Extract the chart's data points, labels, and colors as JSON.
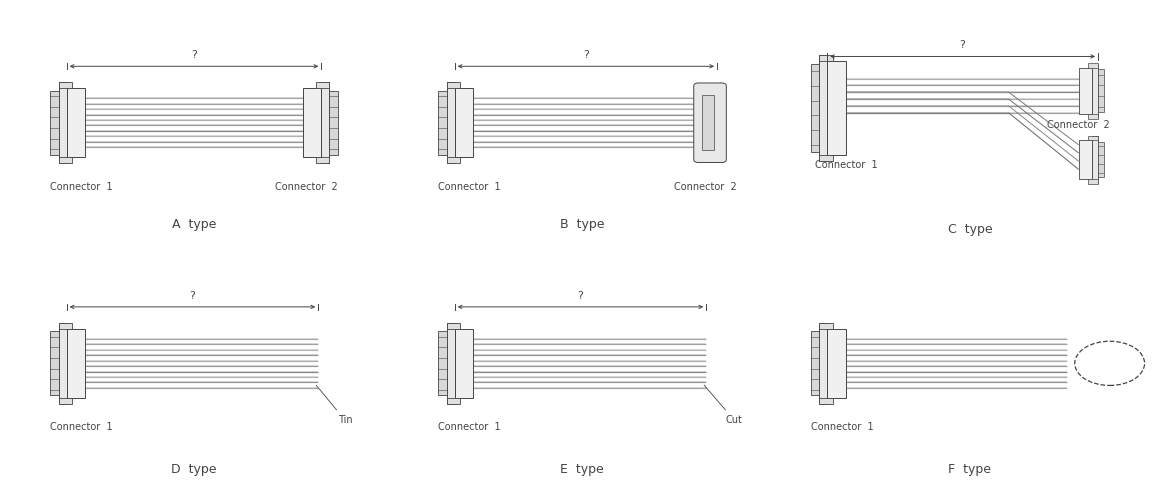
{
  "bg_color": "#ffffff",
  "line_color": "#444444",
  "grid_color": "#aaaaaa",
  "types": [
    "A",
    "B",
    "C",
    "D",
    "E",
    "F"
  ],
  "wire_base_colors": [
    "#bbbbbb",
    "#aaaaaa",
    "#cccccc",
    "#999999",
    "#b0b0b0",
    "#c8c8c8",
    "#a8a8a8",
    "#d0d0d0",
    "#b8b8b8",
    "#c0c0c0"
  ],
  "labels": {
    "A": {
      "left": "Connector  1",
      "right": "Connector  2",
      "type": "A  type"
    },
    "B": {
      "left": "Connector  1",
      "right": "Connector  2",
      "type": "B  type"
    },
    "C": {
      "left": "Connector  1",
      "right": "Connector  2",
      "type": "C  type"
    },
    "D": {
      "left": "Connector  1",
      "right": "Tin",
      "type": "D  type"
    },
    "E": {
      "left": "Connector  1",
      "right": "Cut",
      "type": "E  type"
    },
    "F": {
      "left": "Connector  1",
      "right": "?",
      "type": "F  type"
    }
  },
  "n_wires": 10,
  "font_size_label": 7,
  "font_size_type": 9,
  "font_family": "DejaVu Sans"
}
